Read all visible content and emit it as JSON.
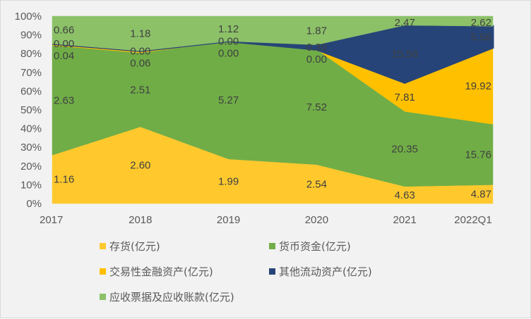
{
  "chart_data": {
    "type": "area",
    "stacking": "percent",
    "categories": [
      "2017",
      "2018",
      "2019",
      "2020",
      "2021",
      "2022Q1"
    ],
    "yticks": [
      "0%",
      "10%",
      "20%",
      "30%",
      "40%",
      "50%",
      "60%",
      "70%",
      "80%",
      "90%",
      "100%"
    ],
    "ylim": [
      0,
      100
    ],
    "legend_position": "bottom",
    "series": [
      {
        "name": "存货(亿元)",
        "color": "#FFC92E",
        "values": [
          1.16,
          2.6,
          1.99,
          2.54,
          4.63,
          4.87
        ],
        "labels": [
          "1.16",
          "2.60",
          "1.99",
          "2.54",
          "4.63",
          "4.87"
        ]
      },
      {
        "name": "货币资金(亿元)",
        "color": "#70AD47",
        "values": [
          2.63,
          2.51,
          5.27,
          7.52,
          20.35,
          15.76
        ],
        "labels": [
          "2.63",
          "2.51",
          "5.27",
          "7.52",
          "20.35",
          "15.76"
        ]
      },
      {
        "name": "交易性金融资产(亿元)",
        "color": "#FFC000",
        "values": [
          0.04,
          0.06,
          0.0,
          0.0,
          7.81,
          19.92
        ],
        "labels": [
          "0.04",
          "0.06",
          "0.00",
          "0.00",
          "7.81",
          "19.92"
        ]
      },
      {
        "name": "其他流动资产(亿元)",
        "color": "#264478",
        "values": [
          0.0,
          0.0,
          0.0,
          0.3,
          15.58,
          5.56
        ],
        "labels": [
          "0.00",
          "0.00",
          "0.00",
          "0.30",
          "15.58",
          "5.56"
        ]
      },
      {
        "name": "应收票据及应收账款(亿元)",
        "color": "#8CC168",
        "values": [
          0.66,
          1.18,
          1.12,
          1.87,
          2.47,
          2.62
        ],
        "labels": [
          "0.66",
          "1.18",
          "1.12",
          "1.87",
          "2.47",
          "2.62"
        ]
      }
    ]
  }
}
